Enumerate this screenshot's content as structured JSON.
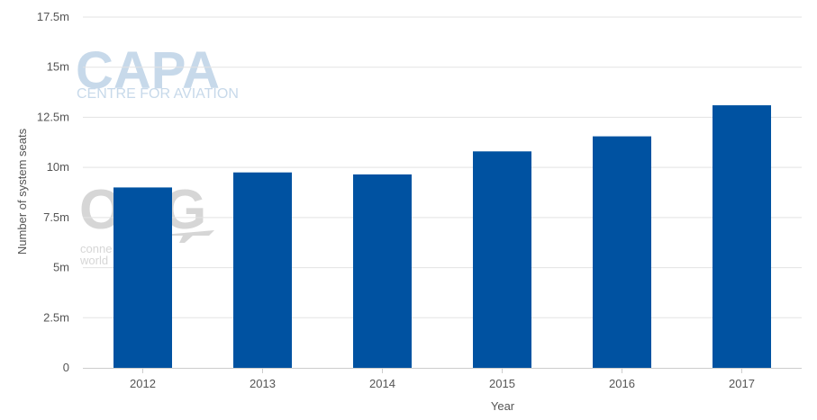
{
  "watermark": {
    "capa_logo": "CAPA",
    "capa_subtitle": "CENTRE FOR AVIATION",
    "oag_logo": "OAG",
    "oag_tagline_1": "conne",
    "oag_tagline_2": "world"
  },
  "colors": {
    "bar": "#0052a1",
    "grid": "#e3e3e3",
    "text": "#555555",
    "watermark_capa": "#c7d9ea",
    "watermark_oag": "#d6d6d6"
  },
  "chart_data": {
    "type": "bar",
    "categories": [
      "2012",
      "2013",
      "2014",
      "2015",
      "2016",
      "2017"
    ],
    "values": [
      9.0,
      9.75,
      9.65,
      10.8,
      11.55,
      13.1
    ],
    "value_unit": "millions",
    "xlabel": "Year",
    "ylabel": "Number of system seats",
    "ylim": [
      0,
      17.5
    ],
    "yticks": [
      0,
      2.5,
      5,
      7.5,
      10,
      12.5,
      15,
      17.5
    ],
    "ytick_labels": [
      "0",
      "2.5m",
      "5m",
      "7.5m",
      "10m",
      "12.5m",
      "15m",
      "17.5m"
    ],
    "grid": true,
    "legend": "none"
  }
}
